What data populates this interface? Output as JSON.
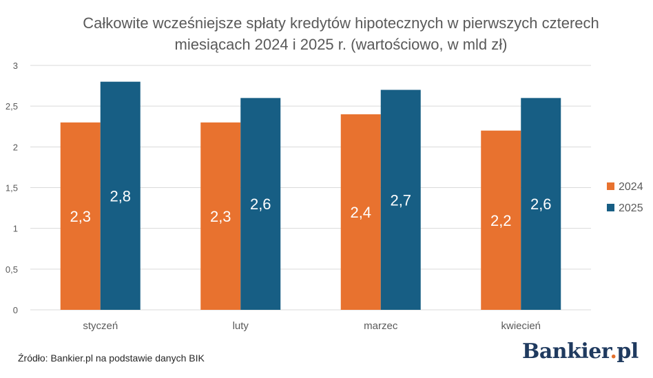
{
  "title_line1": "Całkowite wcześniejsze spłaty kredytów hipotecznych w pierwszych czterech",
  "title_line2": "miesiącach 2024 i 2025 r. (wartościowo, w mld zł)",
  "source": "Źródło: Bankier.pl na podstawie danych BIK",
  "logo": {
    "name": "Bankier",
    "dot": ".",
    "tld": "pl"
  },
  "colors": {
    "s2024": "#E8722F",
    "s2025": "#175E84",
    "grid": "#D9D9D9",
    "axis_text": "#595959"
  },
  "chart_data": {
    "type": "bar",
    "title": "Całkowite wcześniejsze spłaty kredytów hipotecznych w pierwszych czterech miesiącach 2024 i 2025 r. (wartościowo, w mld zł)",
    "categories": [
      "styczeń",
      "luty",
      "marzec",
      "kwiecień"
    ],
    "series": [
      {
        "name": "2024",
        "values": [
          2.3,
          2.3,
          2.4,
          2.2
        ],
        "labels": [
          "2,3",
          "2,3",
          "2,4",
          "2,2"
        ],
        "color": "#E8722F"
      },
      {
        "name": "2025",
        "values": [
          2.8,
          2.6,
          2.7,
          2.6
        ],
        "labels": [
          "2,8",
          "2,6",
          "2,7",
          "2,6"
        ],
        "color": "#175E84"
      }
    ],
    "yticks": [
      0,
      0.5,
      1,
      1.5,
      2,
      2.5,
      3
    ],
    "ytick_labels": [
      "0",
      "0,5",
      "1",
      "1,5",
      "2",
      "2,5",
      "3"
    ],
    "ylim": [
      0,
      3
    ],
    "grid": true,
    "legend": "right"
  }
}
